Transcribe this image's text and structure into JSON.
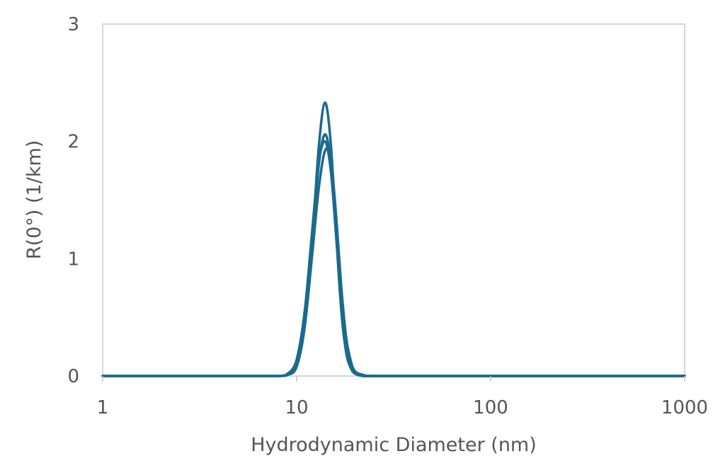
{
  "chart_data": {
    "type": "line",
    "xlabel": "Hydrodynamic Diameter (nm)",
    "ylabel": "R(0°) (1/km)",
    "x_scale": "log",
    "xlim": [
      1,
      1000
    ],
    "ylim": [
      0,
      3
    ],
    "x_ticks": [
      "1",
      "10",
      "100",
      "1000"
    ],
    "y_ticks": [
      "0",
      "1",
      "2",
      "3"
    ],
    "grid": false,
    "legend": "none",
    "series_color": "#1B6A8E",
    "series": [
      {
        "x": [
          1,
          5,
          8,
          9,
          10,
          11,
          12,
          13,
          14,
          15,
          16,
          17,
          18,
          19,
          20,
          22,
          25,
          50,
          100,
          1000
        ],
        "values": [
          0,
          0,
          0,
          0.01,
          0.08,
          0.42,
          1.12,
          1.95,
          2.33,
          1.98,
          1.2,
          0.55,
          0.2,
          0.07,
          0.02,
          0,
          0,
          0,
          0,
          0
        ]
      },
      {
        "x": [
          1,
          5,
          8,
          9,
          10,
          11,
          12,
          13,
          14,
          15,
          16,
          17,
          18,
          19,
          20,
          22,
          25,
          50,
          100,
          1000
        ],
        "values": [
          0,
          0,
          0,
          0.02,
          0.11,
          0.48,
          1.15,
          1.8,
          2.06,
          1.82,
          1.22,
          0.62,
          0.25,
          0.09,
          0.03,
          0,
          0,
          0,
          0,
          0
        ]
      },
      {
        "x": [
          1,
          5,
          8,
          9,
          10,
          11,
          12,
          13,
          14,
          15,
          16,
          17,
          18,
          19,
          20,
          22,
          25,
          50,
          100,
          1000
        ],
        "values": [
          0,
          0,
          0,
          0.02,
          0.14,
          0.55,
          1.22,
          1.82,
          2.0,
          1.75,
          1.18,
          0.62,
          0.26,
          0.1,
          0.03,
          0,
          0,
          0,
          0,
          0
        ]
      },
      {
        "x": [
          1,
          5,
          8,
          9,
          10,
          11,
          12,
          13,
          14,
          15,
          16,
          17,
          18,
          19,
          20,
          22,
          25,
          50,
          100,
          1000
        ],
        "values": [
          0,
          0,
          0,
          0.01,
          0.09,
          0.42,
          1.02,
          1.6,
          1.92,
          1.85,
          1.35,
          0.75,
          0.33,
          0.13,
          0.04,
          0.01,
          0,
          0,
          0,
          0
        ]
      }
    ]
  }
}
